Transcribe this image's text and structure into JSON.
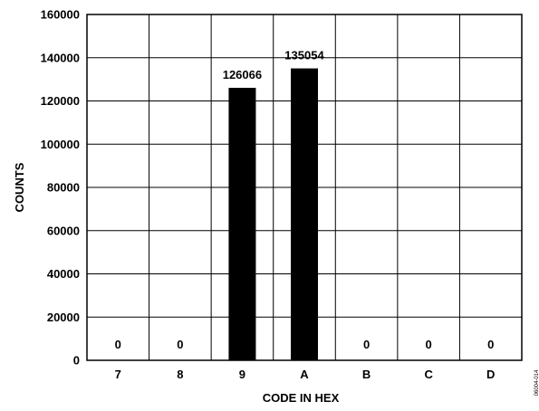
{
  "chart_data": {
    "type": "bar",
    "categories": [
      "7",
      "8",
      "9",
      "A",
      "B",
      "C",
      "D"
    ],
    "values": [
      0,
      0,
      126066,
      135054,
      0,
      0,
      0
    ],
    "data_labels": [
      "0",
      "0",
      "126066",
      "135054",
      "0",
      "0",
      "0"
    ],
    "title": "",
    "xlabel": "CODE IN HEX",
    "ylabel": "COUNTS",
    "ylim": [
      0,
      160000
    ],
    "yticks": [
      0,
      20000,
      40000,
      60000,
      80000,
      100000,
      120000,
      140000,
      160000
    ],
    "ytick_labels": [
      "0",
      "20000",
      "40000",
      "60000",
      "80000",
      "100000",
      "120000",
      "140000",
      "160000"
    ],
    "grid": true,
    "bar_color": "#000000",
    "side_note": "06004-014"
  }
}
